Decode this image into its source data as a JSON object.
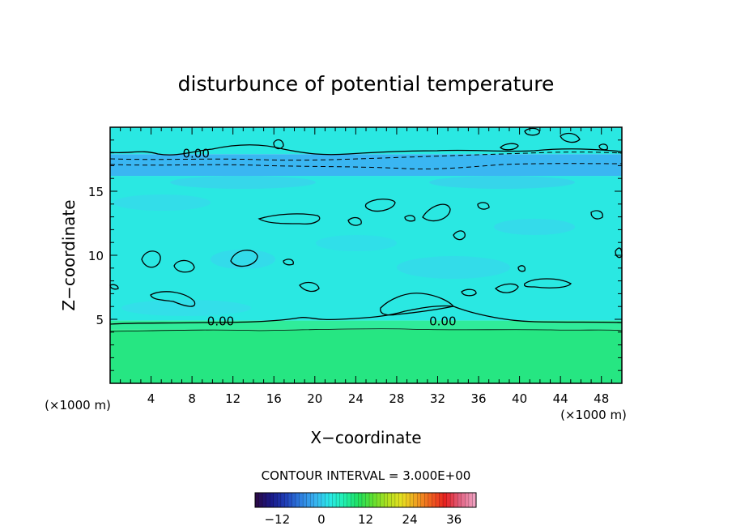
{
  "chart_data": {
    "type": "heatmap",
    "title": "disturbunce of potential temperature",
    "xlabel": "X−coordinate",
    "ylabel": "Z−coordinate",
    "x_unit_label": "(×1000 m)",
    "z_unit_label": "(×1000 m)",
    "xlim": [
      0,
      50
    ],
    "ylim": [
      0,
      20
    ],
    "x_ticks": [
      4,
      8,
      12,
      16,
      20,
      24,
      28,
      32,
      36,
      40,
      44,
      48
    ],
    "y_ticks": [
      5,
      10,
      15
    ],
    "contour_interval_text": "CONTOUR INTERVAL = 3.000E+00",
    "contour_labels": [
      {
        "text": "0.00",
        "x": 8.4,
        "z": 18.0
      },
      {
        "text": "0.00",
        "x": 10.8,
        "z": 4.9
      },
      {
        "text": "0.00",
        "x": 32.5,
        "z": 4.9
      }
    ],
    "colorbar": {
      "range": [
        -18,
        42
      ],
      "ticks": [
        -12,
        0,
        12,
        24,
        36
      ],
      "colors": [
        "#2a0a4a",
        "#1a1a8a",
        "#1f3fb8",
        "#2f7fe0",
        "#38b0f0",
        "#2ae8e8",
        "#20f0b0",
        "#20e060",
        "#60e030",
        "#b0e020",
        "#e8e020",
        "#f0a020",
        "#f06020",
        "#e82020",
        "#e06080",
        "#f0a0c0"
      ]
    },
    "field_bands": [
      {
        "z_from": 0.0,
        "z_to": 4.2,
        "value": 3.0,
        "color": "#26e682"
      },
      {
        "z_from": 4.2,
        "z_to": 4.9,
        "value": 1.5,
        "color": "#30ec9a"
      },
      {
        "z_from": 4.9,
        "z_to": 16.2,
        "value": 0.0,
        "color": "#2ae8e2"
      },
      {
        "z_from": 16.2,
        "z_to": 17.9,
        "value": -3.0,
        "color": "#3ab6f2"
      },
      {
        "z_from": 17.9,
        "z_to": 20.0,
        "value": 0.0,
        "color": "#2ae8e2"
      }
    ]
  }
}
